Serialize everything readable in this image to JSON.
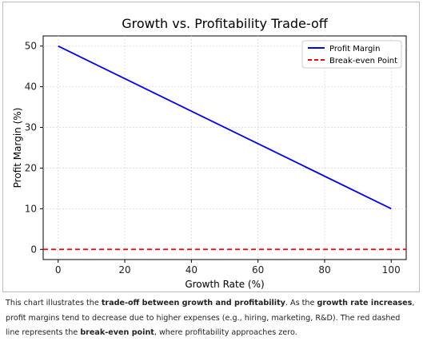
{
  "chart_data": {
    "type": "line",
    "title": "Growth vs. Profitability Trade-off",
    "xlabel": "Growth Rate (%)",
    "ylabel": "Profit Margin (%)",
    "xlim": [
      -4.5,
      104.5
    ],
    "ylim": [
      -2.5,
      52.5
    ],
    "x_ticks": [
      0,
      20,
      40,
      60,
      80,
      100
    ],
    "y_ticks": [
      0,
      10,
      20,
      30,
      40,
      50
    ],
    "grid": true,
    "legend_position": "top-right",
    "series": [
      {
        "name": "Profit Margin",
        "style": "solid",
        "color": "#0000ff",
        "x": [
          0,
          100
        ],
        "y": [
          50,
          10
        ]
      },
      {
        "name": "Break-even Point",
        "style": "dashed",
        "color": "#ff0000",
        "x": [
          -4.5,
          104.5
        ],
        "y": [
          0,
          0
        ]
      }
    ]
  },
  "caption": {
    "l1a": "This chart illustrates the ",
    "l1b": "trade-off between growth and profitability",
    "l1c": ". As the ",
    "l1d": "growth rate increases",
    "l1e": ",",
    "l2": "profit margins tend to decrease due to higher expenses (e.g., hiring, marketing, R&D). The red dashed",
    "l3a": "line represents the ",
    "l3b": "break-even point",
    "l3c": ", where profitability approaches zero."
  }
}
